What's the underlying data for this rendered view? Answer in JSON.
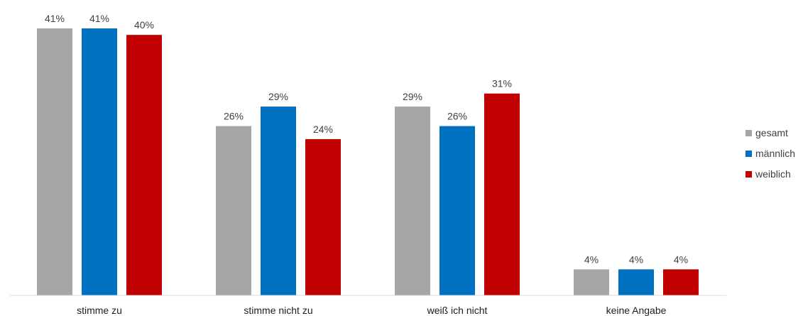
{
  "chart_data": {
    "type": "bar",
    "categories": [
      "stimme zu",
      "stimme nicht zu",
      "weiß ich nicht",
      "keine Angabe"
    ],
    "series": [
      {
        "name": "gesamt",
        "color": "#a6a6a6",
        "values": [
          41,
          26,
          29,
          4
        ],
        "labels": [
          "41%",
          "26%",
          "29%",
          "4%"
        ]
      },
      {
        "name": "männlich",
        "color": "#0070c0",
        "values": [
          41,
          29,
          26,
          4
        ],
        "labels": [
          "41%",
          "29%",
          "26%",
          "4%"
        ]
      },
      {
        "name": "weiblich",
        "color": "#c00000",
        "values": [
          40,
          24,
          31,
          4
        ],
        "labels": [
          "40%",
          "24%",
          "31%",
          "4%"
        ]
      }
    ],
    "title": "",
    "xlabel": "",
    "ylabel": "",
    "ylim": [
      0,
      41
    ],
    "grid": false,
    "legend_position": "right"
  }
}
